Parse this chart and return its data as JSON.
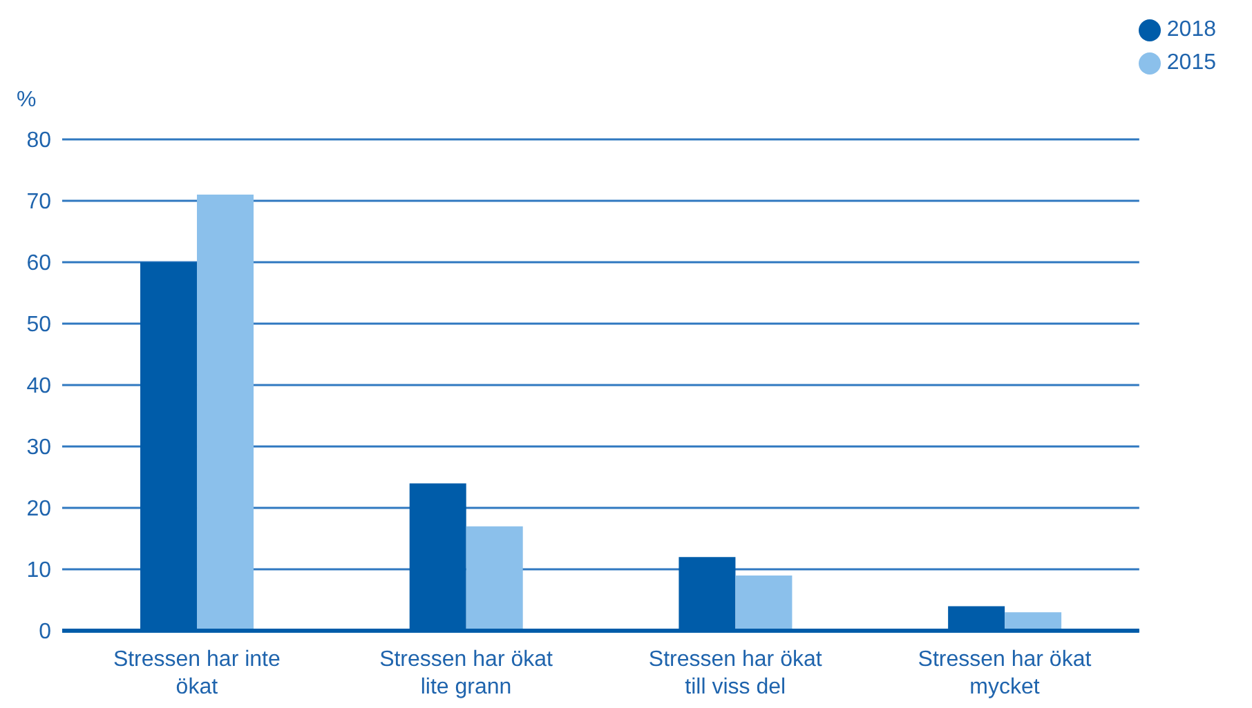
{
  "chart_data": {
    "type": "bar",
    "ylabel": "%",
    "categories": [
      "Stressen har inte ökat",
      "Stressen har ökat lite grann",
      "Stressen har ökat till viss del",
      "Stressen har ökat mycket"
    ],
    "series": [
      {
        "name": "2018",
        "color": "#005ca9",
        "values": [
          60,
          24,
          12,
          4
        ]
      },
      {
        "name": "2015",
        "color": "#8bc0eb",
        "values": [
          71,
          17,
          9,
          3
        ]
      }
    ],
    "ylim": [
      0,
      80
    ],
    "yticks": [
      0,
      10,
      20,
      30,
      40,
      50,
      60,
      70,
      80
    ],
    "grid": "y",
    "legend": "top right"
  }
}
